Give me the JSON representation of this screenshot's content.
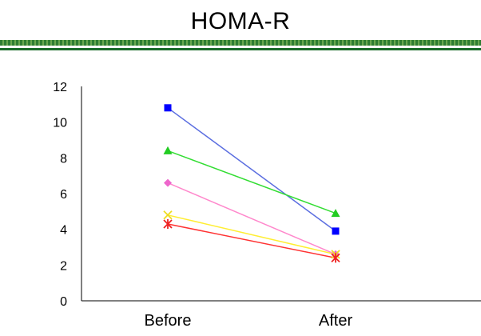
{
  "slide": {
    "title": "HOMA-R"
  },
  "chart_data": {
    "type": "line",
    "title": "",
    "xlabel": "",
    "ylabel": "",
    "categories": [
      "Before",
      "After"
    ],
    "ylim": [
      0,
      12
    ],
    "yticks": [
      0,
      2,
      4,
      6,
      8,
      10,
      12
    ],
    "grid": false,
    "legend": "none",
    "series": [
      {
        "values": [
          10.8,
          3.9
        ],
        "color": "#5b6ee0",
        "marker": "square",
        "marker_color": "#0000ff"
      },
      {
        "values": [
          8.4,
          4.9
        ],
        "color": "#33dd33",
        "marker": "triangle",
        "marker_color": "#22cc22"
      },
      {
        "values": [
          6.6,
          2.6
        ],
        "color": "#ff88cc",
        "marker": "diamond",
        "marker_color": "#ee66cc"
      },
      {
        "values": [
          4.8,
          2.6
        ],
        "color": "#ffee33",
        "marker": "x",
        "marker_color": "#eedd22"
      },
      {
        "values": [
          4.3,
          2.4
        ],
        "color": "#ff3333",
        "marker": "asterisk",
        "marker_color": "#ee2222"
      }
    ]
  }
}
